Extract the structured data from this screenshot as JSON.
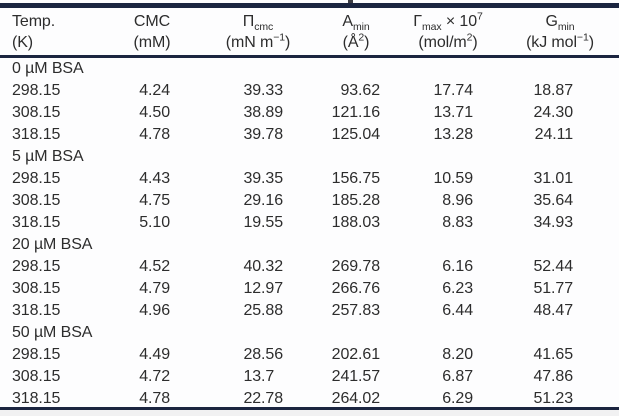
{
  "table": {
    "columns": [
      {
        "name": "temp",
        "line1": [
          {
            "t": "Temp."
          }
        ],
        "line2": [
          {
            "t": "(K)"
          }
        ]
      },
      {
        "name": "cmc",
        "line1": [
          {
            "t": "CMC"
          }
        ],
        "line2": [
          {
            "t": "(mM)"
          }
        ]
      },
      {
        "name": "pi-cmc",
        "line1": [
          {
            "t": "Π"
          },
          {
            "sub": "cmc"
          }
        ],
        "line2": [
          {
            "t": "(mN m"
          },
          {
            "sup": "−1"
          },
          {
            "t": ")"
          }
        ]
      },
      {
        "name": "a-min",
        "line1": [
          {
            "t": "A"
          },
          {
            "sub": "min"
          }
        ],
        "line2": [
          {
            "t": "(Å"
          },
          {
            "sup": "2"
          },
          {
            "t": ")"
          }
        ]
      },
      {
        "name": "gamma-max",
        "line1": [
          {
            "t": "Γ"
          },
          {
            "sub": "max"
          },
          {
            "t": " × 10"
          },
          {
            "sup": "7"
          }
        ],
        "line2": [
          {
            "t": "(mol/m"
          },
          {
            "sup": "2"
          },
          {
            "t": ")"
          }
        ]
      },
      {
        "name": "g-min",
        "line1": [
          {
            "t": "G"
          },
          {
            "sub": "min"
          }
        ],
        "line2": [
          {
            "t": "(kJ mol"
          },
          {
            "sup": "−1"
          },
          {
            "t": ")"
          }
        ]
      }
    ],
    "sections": [
      {
        "label": "0 µM BSA",
        "rows": [
          [
            "298.15",
            "4.24",
            "39.33",
            "93.62",
            "17.74",
            "18.87"
          ],
          [
            "308.15",
            "4.50",
            "38.89",
            "121.16",
            "13.71",
            "24.30"
          ],
          [
            "318.15",
            "4.78",
            "39.78",
            "125.04",
            "13.28",
            "24.11"
          ]
        ]
      },
      {
        "label": "5 µM BSA",
        "rows": [
          [
            "298.15",
            "4.43",
            "39.35",
            "156.75",
            "10.59",
            "31.01"
          ],
          [
            "308.15",
            "4.75",
            "29.16",
            "185.28",
            "8.96",
            "35.64"
          ],
          [
            "318.15",
            "5.10",
            "19.55",
            "188.03",
            "8.83",
            "34.93"
          ]
        ]
      },
      {
        "label": "20 µM BSA",
        "rows": [
          [
            "298.15",
            "4.52",
            "40.32",
            "269.78",
            "6.16",
            "52.44"
          ],
          [
            "308.15",
            "4.79",
            "12.97",
            "266.76",
            "6.23",
            "51.77"
          ],
          [
            "318.15",
            "4.96",
            "25.88",
            "257.83",
            "6.44",
            "48.47"
          ]
        ]
      },
      {
        "label": "50 µM BSA",
        "rows": [
          [
            "298.15",
            "4.49",
            "28.56",
            "202.61",
            "8.20",
            "41.65"
          ],
          [
            "308.15",
            "4.72",
            "13.7",
            "241.57",
            "6.87",
            "47.86"
          ],
          [
            "318.15",
            "4.78",
            "22.78",
            "264.02",
            "6.29",
            "51.23"
          ]
        ]
      }
    ]
  },
  "colors": {
    "rule": "#1b2540",
    "text": "#2d2d2d",
    "background": "#fdfdfe"
  }
}
